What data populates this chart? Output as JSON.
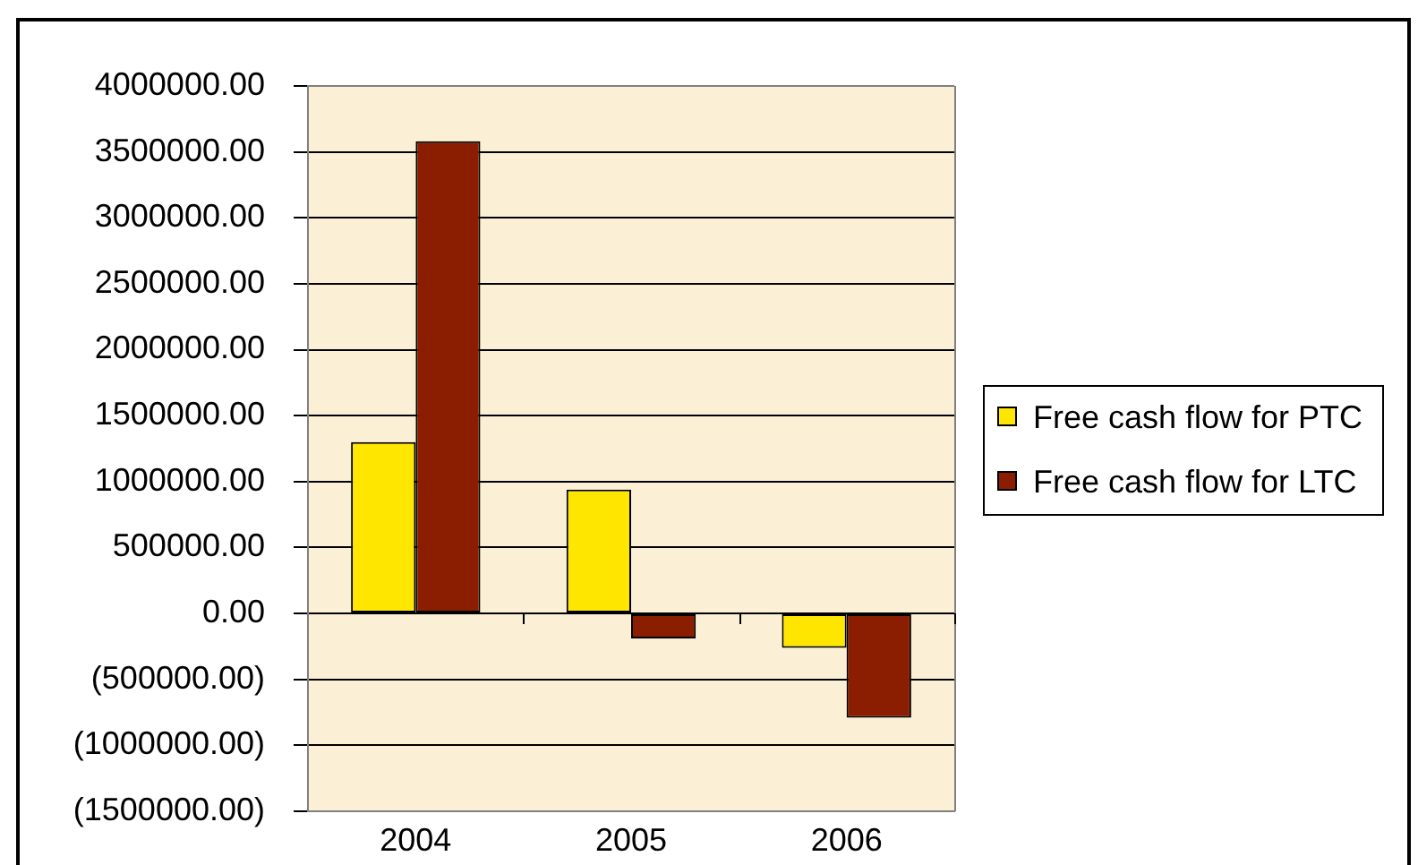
{
  "chart_data": {
    "type": "bar",
    "categories": [
      "2004",
      "2005",
      "2006"
    ],
    "series": [
      {
        "name": "Free cash flow for PTC",
        "color": "#ffe600",
        "values": [
          1300000,
          940000,
          -260000
        ]
      },
      {
        "name": "Free cash flow for LTC",
        "color": "#8b1e00",
        "values": [
          3580000,
          -190000,
          -790000
        ]
      }
    ],
    "ylim": [
      -1500000,
      4000000
    ],
    "yticks": [
      {
        "value": 4000000,
        "label": "4000000.00"
      },
      {
        "value": 3500000,
        "label": "3500000.00"
      },
      {
        "value": 3000000,
        "label": "3000000.00"
      },
      {
        "value": 2500000,
        "label": "2500000.00"
      },
      {
        "value": 2000000,
        "label": "2000000.00"
      },
      {
        "value": 1500000,
        "label": "1500000.00"
      },
      {
        "value": 1000000,
        "label": "1000000.00"
      },
      {
        "value": 500000,
        "label": "500000.00"
      },
      {
        "value": 0,
        "label": "0.00"
      },
      {
        "value": -500000,
        "label": "(500000.00)"
      },
      {
        "value": -1000000,
        "label": "(1000000.00)"
      },
      {
        "value": -1500000,
        "label": "(1500000.00)"
      }
    ],
    "grid": "y",
    "legend": "right"
  }
}
